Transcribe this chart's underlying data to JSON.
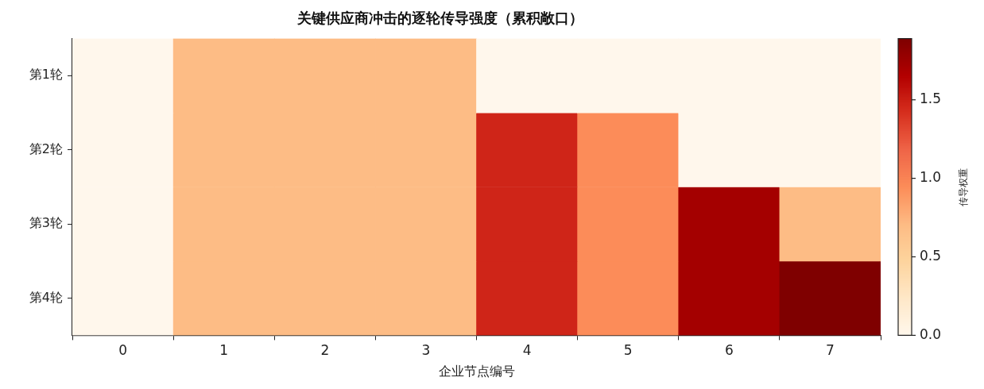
{
  "chart_data": {
    "type": "heatmap",
    "title": "关键供应商冲击的逐轮传导强度（累积敞口）",
    "xlabel": "企业节点编号",
    "clabel": "传导权重",
    "categories": [
      "0",
      "1",
      "2",
      "3",
      "4",
      "5",
      "6",
      "7"
    ],
    "y_categories": [
      "第1轮",
      "第2轮",
      "第3轮",
      "第4轮"
    ],
    "cells": [
      [
        0,
        0.7,
        0.7,
        0.7,
        0,
        0,
        0,
        0
      ],
      [
        0,
        0.7,
        0.7,
        0.7,
        1.47,
        0.95,
        0,
        0
      ],
      [
        0,
        0.7,
        0.7,
        0.7,
        1.47,
        0.95,
        1.72,
        0.7
      ],
      [
        0,
        0.7,
        0.7,
        0.7,
        1.47,
        0.95,
        1.72,
        1.89
      ]
    ],
    "clim": [
      0,
      1.89
    ],
    "cticks": [
      {
        "value": 0,
        "label": "0.0"
      },
      0.5,
      {
        "value": 1,
        "label": "1.0"
      },
      1.5
    ]
  }
}
